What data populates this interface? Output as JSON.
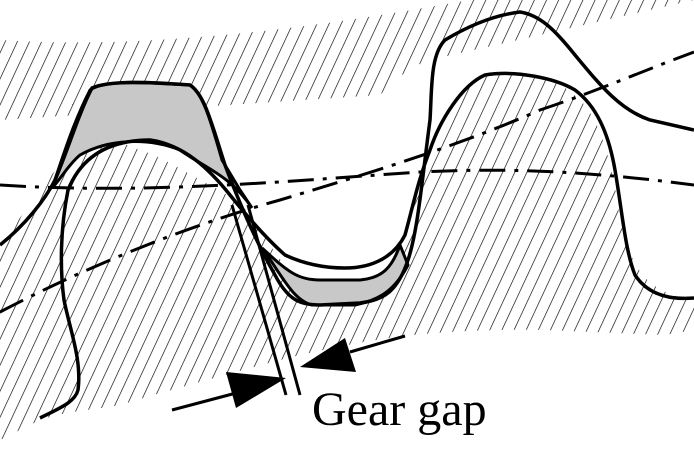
{
  "diagram": {
    "label": "Gear gap",
    "colors": {
      "line": "#000000",
      "background": "#ffffff",
      "overlap_fill": "#c8c8c8"
    }
  }
}
